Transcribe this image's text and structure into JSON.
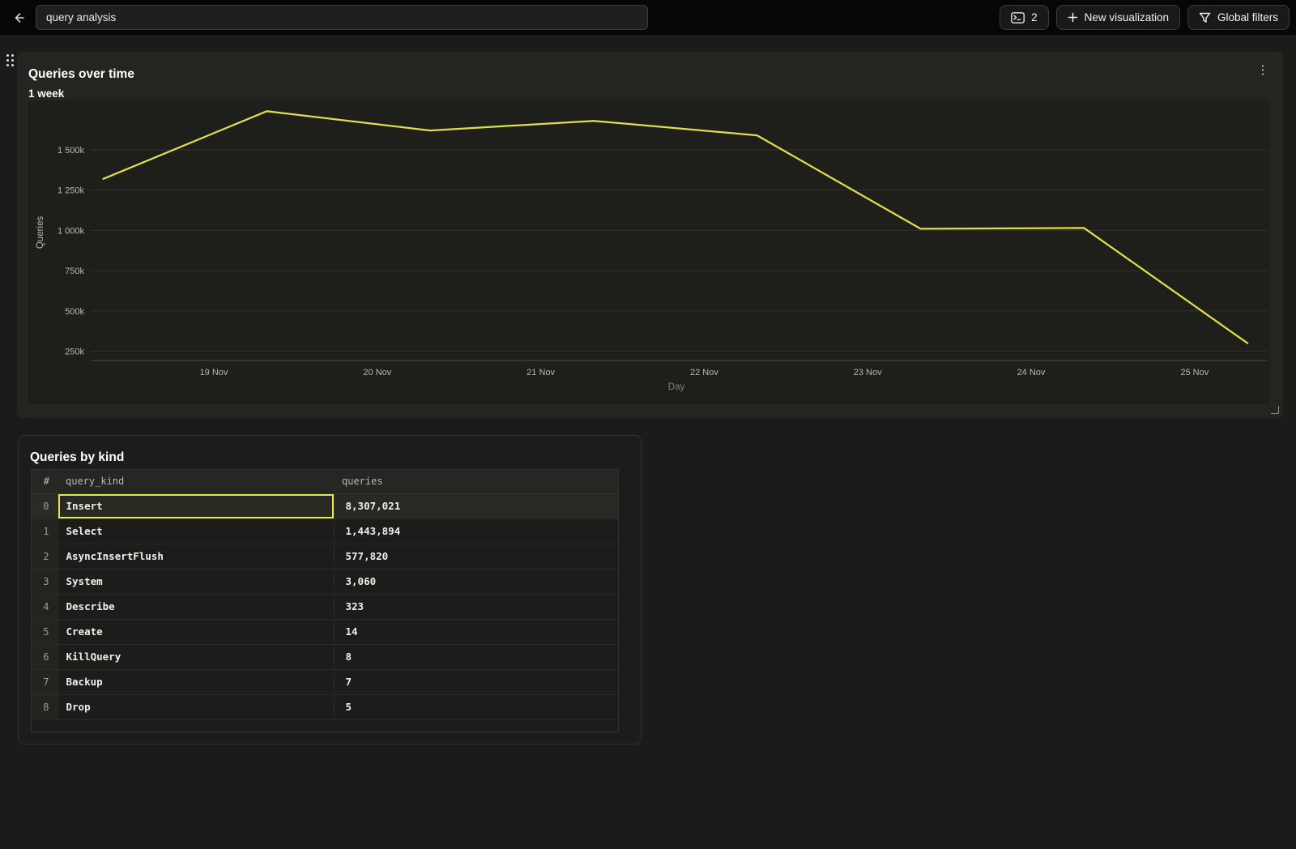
{
  "topbar": {
    "dashboard_name_input": {
      "value": "query analysis"
    },
    "console_tabs_button": {
      "count": "2"
    },
    "new_visualization_button": {
      "label": "New visualization"
    },
    "global_filters_button": {
      "label": "Global filters"
    }
  },
  "chart_panel": {
    "title": "Queries over time",
    "subtitle": "1 week"
  },
  "chart_data": {
    "type": "line",
    "title": "Queries over time",
    "subtitle": "1 week",
    "xlabel": "Day",
    "ylabel": "Queries",
    "x_tick_labels": [
      "19 Nov",
      "20 Nov",
      "21 Nov",
      "22 Nov",
      "23 Nov",
      "24 Nov",
      "25 Nov"
    ],
    "y_ticks": [
      {
        "label": "1 500k",
        "value": 1500000
      },
      {
        "label": "1 250k",
        "value": 1250000
      },
      {
        "label": "1 000k",
        "value": 1000000
      },
      {
        "label": "750k",
        "value": 750000
      },
      {
        "label": "500k",
        "value": 500000
      },
      {
        "label": "250k",
        "value": 250000
      }
    ],
    "grid": true,
    "legend": false,
    "line_color": "#dfdf4b",
    "series": [
      {
        "name": "Queries",
        "points": [
          {
            "x": "18 Nov",
            "y": 1320000
          },
          {
            "x": "19 Nov",
            "y": 1740000
          },
          {
            "x": "20 Nov",
            "y": 1620000
          },
          {
            "x": "21 Nov",
            "y": 1680000
          },
          {
            "x": "22 Nov",
            "y": 1590000
          },
          {
            "x": "23 Nov",
            "y": 1010000
          },
          {
            "x": "24 Nov",
            "y": 1015000
          },
          {
            "x": "25 Nov",
            "y": 300000
          }
        ]
      }
    ]
  },
  "table_panel": {
    "title": "Queries by kind",
    "columns": [
      "#",
      "query_kind",
      "queries"
    ],
    "rows": [
      {
        "index": "0",
        "query_kind": "Insert",
        "queries": "8,307,021",
        "selected": true
      },
      {
        "index": "1",
        "query_kind": "Select",
        "queries": "1,443,894"
      },
      {
        "index": "2",
        "query_kind": "AsyncInsertFlush",
        "queries": "577,820"
      },
      {
        "index": "3",
        "query_kind": "System",
        "queries": "3,060"
      },
      {
        "index": "4",
        "query_kind": "Describe",
        "queries": "323"
      },
      {
        "index": "5",
        "query_kind": "Create",
        "queries": "14"
      },
      {
        "index": "6",
        "query_kind": "KillQuery",
        "queries": "8"
      },
      {
        "index": "7",
        "query_kind": "Backup",
        "queries": "7"
      },
      {
        "index": "8",
        "query_kind": "Drop",
        "queries": "5"
      }
    ]
  },
  "colors": {
    "accent_line": "#dfdf4b",
    "selection_border": "#e6e650",
    "panel_bg": "#242421",
    "page_bg": "#1b1b19"
  }
}
